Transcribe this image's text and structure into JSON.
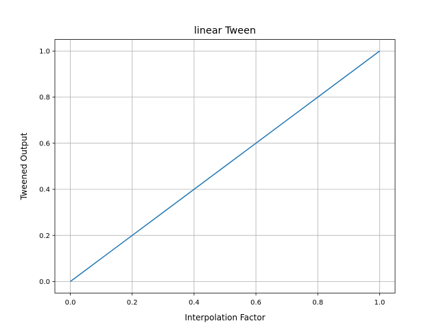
{
  "chart_data": {
    "type": "line",
    "title": "linear Tween",
    "xlabel": "Interpolation Factor",
    "ylabel": "Tweened Output",
    "xlim": [
      -0.05,
      1.05
    ],
    "ylim": [
      -0.05,
      1.05
    ],
    "xticks": [
      "0.0",
      "0.2",
      "0.4",
      "0.6",
      "0.8",
      "1.0"
    ],
    "yticks": [
      "0.0",
      "0.2",
      "0.4",
      "0.6",
      "0.8",
      "1.0"
    ],
    "grid": true,
    "series": [
      {
        "color": "#1f77b4",
        "x": [
          0,
          0.1,
          0.2,
          0.3,
          0.4,
          0.5,
          0.6,
          0.7,
          0.8,
          0.9,
          1.0
        ],
        "y": [
          0,
          0.1,
          0.2,
          0.3,
          0.4,
          0.5,
          0.6,
          0.7,
          0.8,
          0.9,
          1.0
        ]
      }
    ]
  }
}
